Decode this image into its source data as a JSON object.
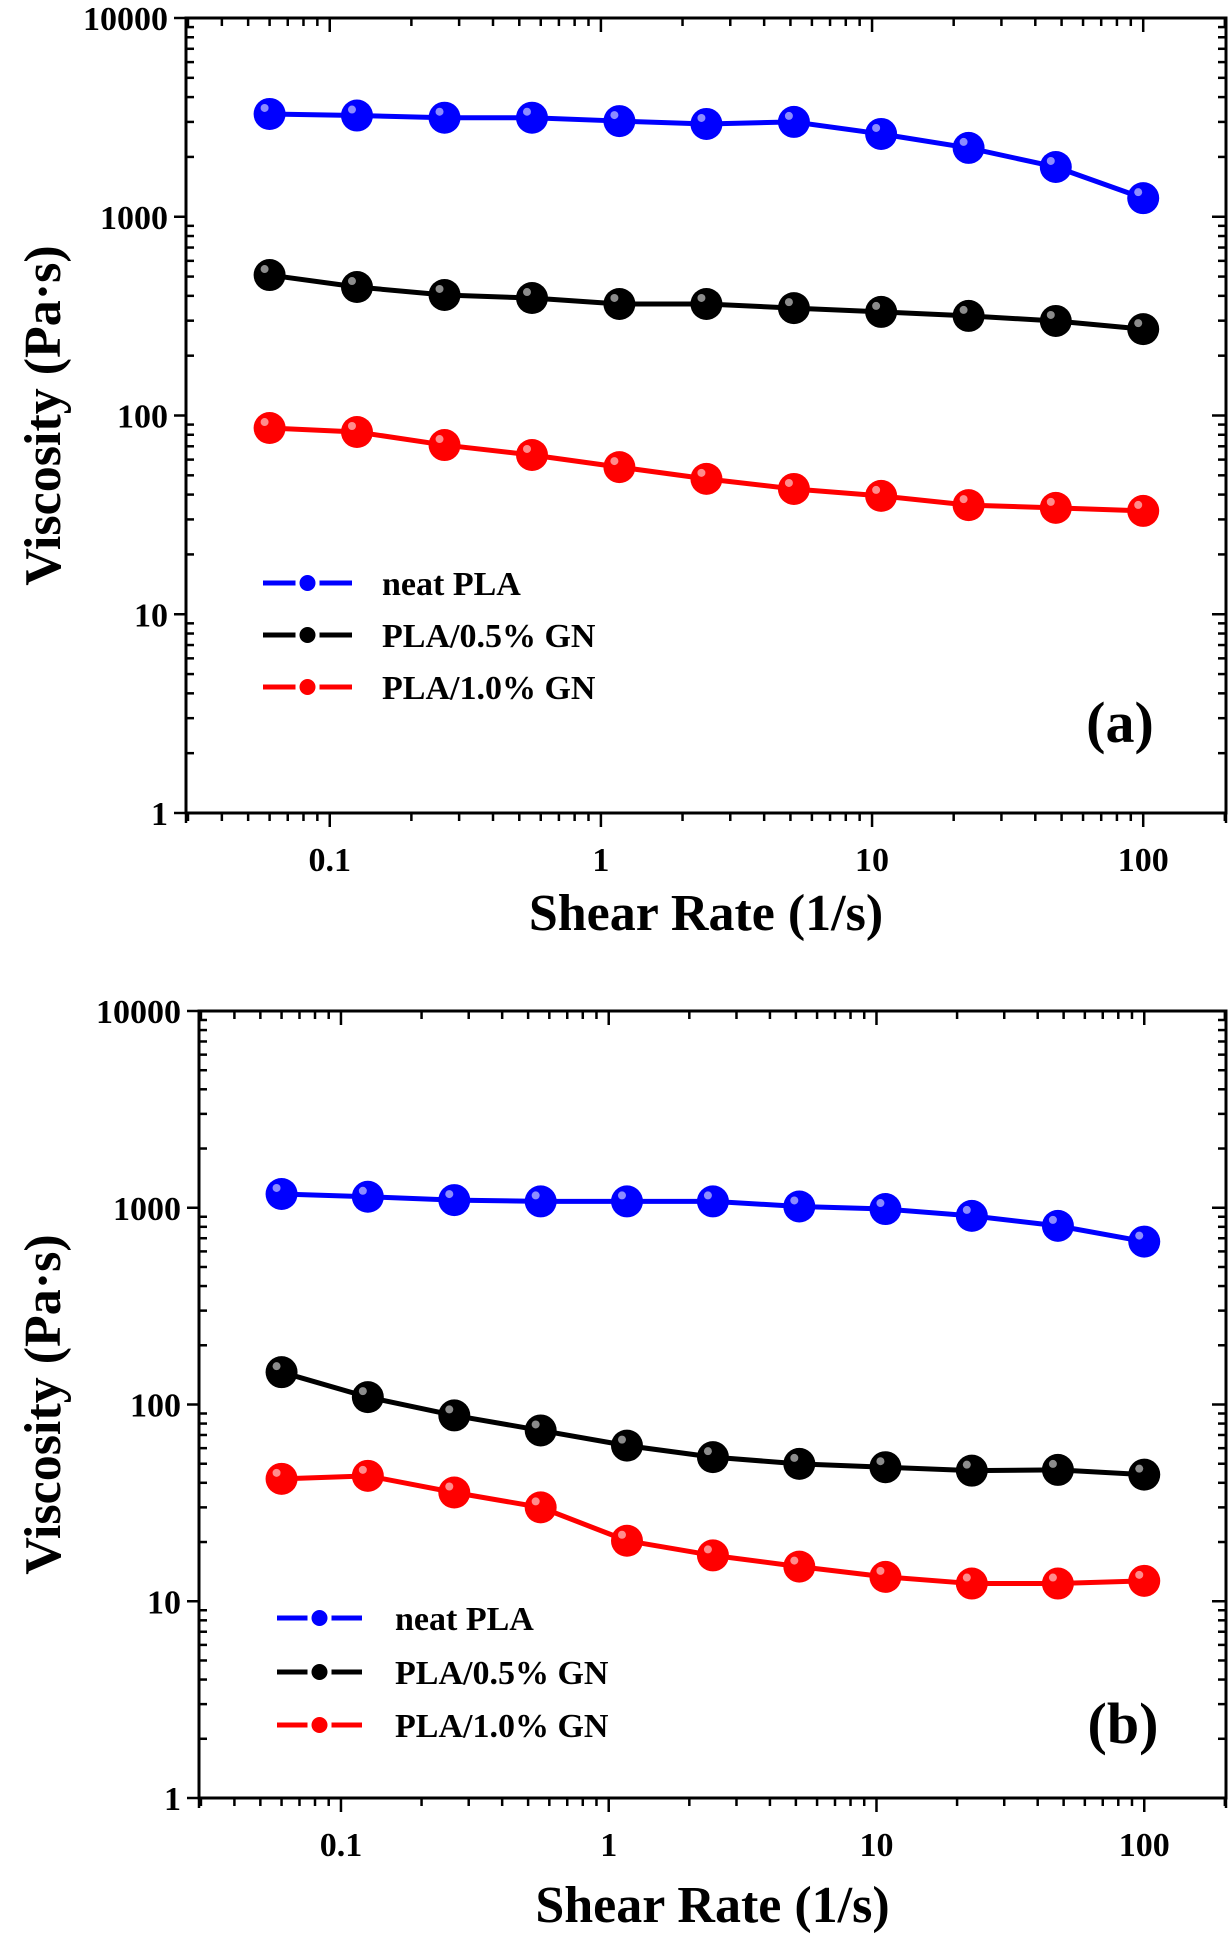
{
  "chart_data": [
    {
      "type": "line",
      "panel_label": "(a)",
      "xlabel": "Shear Rate (1/s)",
      "ylabel": "Viscosity (Pa·s)",
      "xscale": "log",
      "yscale": "log",
      "xlim": [
        0.0295,
        202
      ],
      "ylim": [
        1,
        10000
      ],
      "xticks": [
        0.1,
        1,
        10,
        100
      ],
      "xtick_labels": [
        "0.1",
        "1",
        "10",
        "100"
      ],
      "yticks": [
        1,
        10,
        100,
        1000,
        10000
      ],
      "ytick_labels": [
        "1",
        "10",
        "100",
        "1000",
        "10000"
      ],
      "legend_position": "lower-left",
      "grid": false,
      "x": [
        0.06,
        0.126,
        0.265,
        0.557,
        1.17,
        2.45,
        5.15,
        10.8,
        22.7,
        47.6,
        100
      ],
      "series": [
        {
          "name": "neat PLA",
          "color": "#0000ff",
          "values": [
            3290,
            3230,
            3150,
            3150,
            3030,
            2930,
            3000,
            2610,
            2220,
            1780,
            1240
          ]
        },
        {
          "name": "PLA/0.5% GN",
          "color": "#000000",
          "values": [
            509,
            443,
            404,
            390,
            364,
            364,
            347,
            332,
            317,
            299,
            272
          ]
        },
        {
          "name": "PLA/1.0% GN",
          "color": "#ff0000",
          "values": [
            86.5,
            82.6,
            71,
            63.3,
            55,
            48,
            42.7,
            39.4,
            35.4,
            34.3,
            33.1
          ]
        }
      ]
    },
    {
      "type": "line",
      "panel_label": "(b)",
      "xlabel": "Shear Rate (1/s)",
      "ylabel": "Viscosity (Pa·s)",
      "xscale": "log",
      "yscale": "log",
      "xlim": [
        0.0295,
        202
      ],
      "ylim": [
        1,
        10000
      ],
      "xticks": [
        0.1,
        1,
        10,
        100
      ],
      "xtick_labels": [
        "0.1",
        "1",
        "10",
        "100"
      ],
      "yticks": [
        1,
        10,
        100,
        1000,
        10000
      ],
      "ytick_labels": [
        "1",
        "10",
        "100",
        "1000",
        "10000"
      ],
      "legend_position": "lower-left",
      "grid": false,
      "x": [
        0.06,
        0.126,
        0.265,
        0.557,
        1.17,
        2.45,
        5.15,
        10.8,
        22.7,
        47.6,
        100
      ],
      "series": [
        {
          "name": "neat PLA",
          "color": "#0000ff",
          "values": [
            1175,
            1137,
            1094,
            1077,
            1077,
            1077,
            1015,
            985,
            909,
            809,
            673
          ]
        },
        {
          "name": "PLA/0.5% GN",
          "color": "#000000",
          "values": [
            146,
            109,
            88,
            73.8,
            61.8,
            54,
            49.9,
            48,
            46.1,
            46.5,
            44
          ]
        },
        {
          "name": "PLA/1.0% GN",
          "color": "#ff0000",
          "values": [
            41.9,
            43.4,
            35.7,
            30,
            20.3,
            17.1,
            15,
            13.3,
            12.3,
            12.3,
            12.7
          ]
        }
      ]
    }
  ]
}
